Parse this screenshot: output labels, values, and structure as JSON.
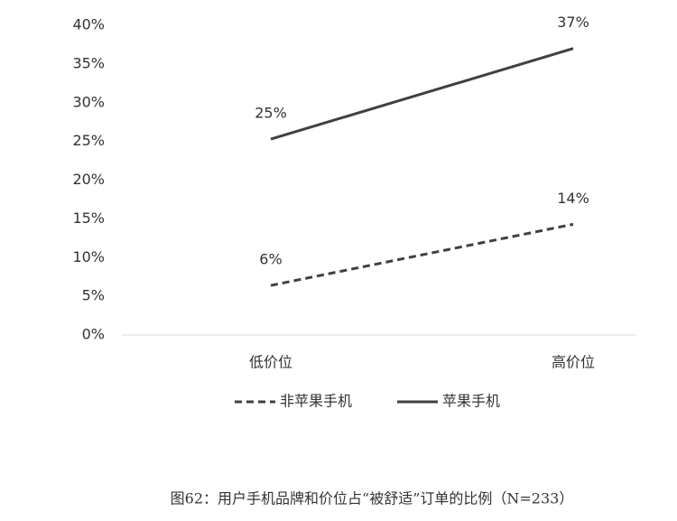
{
  "chart_data": {
    "type": "line",
    "categories": [
      "低价位",
      "高价位"
    ],
    "series": [
      {
        "name": "非苹果手机",
        "color": "#404040",
        "dashed": true,
        "values": [
          6.4,
          14.3
        ],
        "value_labels": [
          "6%",
          "14%"
        ]
      },
      {
        "name": "苹果手机",
        "color": "#404040",
        "dashed": false,
        "values": [
          25.3,
          37
        ],
        "value_labels": [
          "25%",
          "37%"
        ]
      }
    ],
    "ylim": [
      0,
      40
    ],
    "yticks": [
      {
        "value": 0,
        "label": "0%"
      },
      {
        "value": 5,
        "label": "5%"
      },
      {
        "value": 10,
        "label": "10%"
      },
      {
        "value": 15,
        "label": "15%"
      },
      {
        "value": 20,
        "label": "20%"
      },
      {
        "value": 25,
        "label": "25%"
      },
      {
        "value": 30,
        "label": "30%"
      },
      {
        "value": 35,
        "label": "35%"
      },
      {
        "value": 40,
        "label": "40%"
      }
    ],
    "grid": false,
    "caption": "图62：用户手机品牌和价位占“被舒适”订单的比例（N=233）"
  }
}
